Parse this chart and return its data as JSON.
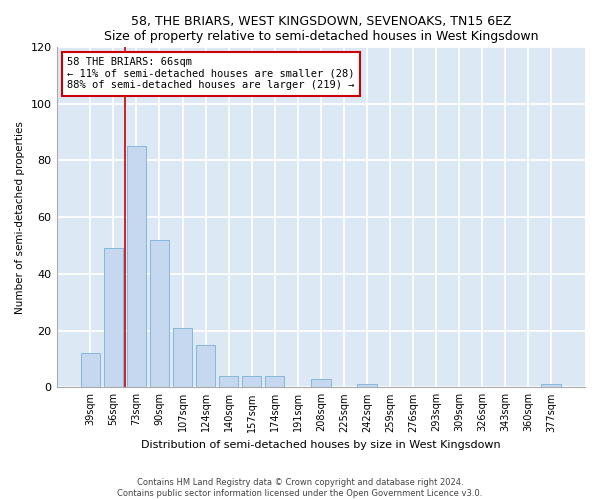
{
  "title": "58, THE BRIARS, WEST KINGSDOWN, SEVENOAKS, TN15 6EZ",
  "subtitle": "Size of property relative to semi-detached houses in West Kingsdown",
  "xlabel": "Distribution of semi-detached houses by size in West Kingsdown",
  "ylabel": "Number of semi-detached properties",
  "categories": [
    "39sqm",
    "56sqm",
    "73sqm",
    "90sqm",
    "107sqm",
    "124sqm",
    "140sqm",
    "157sqm",
    "174sqm",
    "191sqm",
    "208sqm",
    "225sqm",
    "242sqm",
    "259sqm",
    "276sqm",
    "293sqm",
    "309sqm",
    "326sqm",
    "343sqm",
    "360sqm",
    "377sqm"
  ],
  "values": [
    12,
    49,
    85,
    52,
    21,
    15,
    4,
    4,
    4,
    0,
    3,
    0,
    1,
    0,
    0,
    0,
    0,
    0,
    0,
    0,
    1
  ],
  "bar_color": "#c5d8ef",
  "bar_edge_color": "#7bafd4",
  "vline_color": "#cc0000",
  "vline_x": 1.5,
  "annotation_text": "58 THE BRIARS: 66sqm\n← 11% of semi-detached houses are smaller (28)\n88% of semi-detached houses are larger (219) →",
  "annotation_box_color": "#ffffff",
  "annotation_box_edge": "#cc0000",
  "ylim": [
    0,
    120
  ],
  "yticks": [
    0,
    20,
    40,
    60,
    80,
    100,
    120
  ],
  "footer_line1": "Contains HM Land Registry data © Crown copyright and database right 2024.",
  "footer_line2": "Contains public sector information licensed under the Open Government Licence v3.0.",
  "fig_bg_color": "#ffffff",
  "plot_bg_color": "#dce9f5",
  "grid_color": "#ffffff"
}
